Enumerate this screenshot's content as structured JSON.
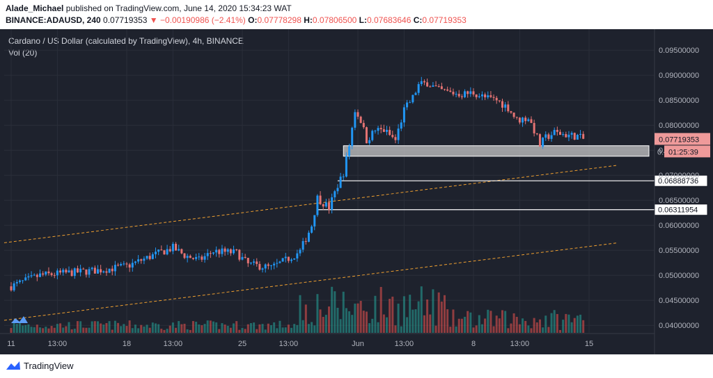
{
  "header": {
    "author": "Alade_Michael",
    "published_text": "published on TradingView.com, June 14, 2020 15:34:23 WAT",
    "symbol": "BINANCE:ADAUSD, 240",
    "last": "0.07719353",
    "change": "−0.00190986 (−2.41%)",
    "o_label": "O:",
    "o": "0.07778298",
    "h_label": "H:",
    "h": "0.07806500",
    "l_label": "L:",
    "l": "0.07683646",
    "c_label": "C:",
    "c": "0.07719353"
  },
  "legend": {
    "title": "Cardano / US Dollar (calculated by TradingView), 4h, BINANCE",
    "vol": "Vol (20)"
  },
  "footer": {
    "brand": "TradingView"
  },
  "colors": {
    "background": "#1e222d",
    "up": "#2196f3",
    "down": "#e57373",
    "vol_up": "#26a69a",
    "vol_down": "#ef5350",
    "trendline": "#f0a030",
    "zone": "#c8c8c8"
  },
  "chart_data": {
    "type": "candlestick",
    "title": "Cardano / US Dollar (calculated by TradingView), 4h, BINANCE",
    "y_ticks": [
      "0.09500000",
      "0.09000000",
      "0.08500000",
      "0.08000000",
      "0.07500000",
      "0.07000000",
      "0.06500000",
      "0.06000000",
      "0.05500000",
      "0.05000000",
      "0.04500000",
      "0.04000000"
    ],
    "y_tick_values": [
      0.095,
      0.09,
      0.085,
      0.08,
      0.075,
      0.07,
      0.065,
      0.06,
      0.055,
      0.05,
      0.045,
      0.04
    ],
    "ylim": [
      0.0385,
      0.0985
    ],
    "x_ticks": [
      "11",
      "13:00",
      "18",
      "13:00",
      "25",
      "13:00",
      "Jun",
      "13:00",
      "8",
      "13:00",
      "15"
    ],
    "x_tick_bars": [
      0,
      16,
      40,
      56,
      80,
      96,
      120,
      136,
      160,
      176,
      200
    ],
    "last_price_label": "0.07719353",
    "countdown_label": "01:25:39",
    "countdown_prefix": "0.",
    "levels": [
      {
        "label": "0.06888736",
        "value": 0.06889,
        "start_bar": 113
      },
      {
        "label": "0.06311954",
        "value": 0.06312,
        "start_bar": 106
      }
    ],
    "zone": {
      "low": 0.0738,
      "high": 0.0759,
      "start_bar": 115
    },
    "trendlines": [
      {
        "x1_bar": 0,
        "y1": 0.0565,
        "x2_bar": 210,
        "y2": 0.072
      },
      {
        "x1_bar": 0,
        "y1": 0.041,
        "x2_bar": 210,
        "y2": 0.0565
      }
    ],
    "price_anchors": [
      [
        0,
        0.0478
      ],
      [
        10,
        0.05
      ],
      [
        20,
        0.0505
      ],
      [
        30,
        0.051
      ],
      [
        40,
        0.0518
      ],
      [
        50,
        0.0542
      ],
      [
        56,
        0.0555
      ],
      [
        60,
        0.054
      ],
      [
        65,
        0.053
      ],
      [
        70,
        0.0548
      ],
      [
        78,
        0.0545
      ],
      [
        82,
        0.0522
      ],
      [
        90,
        0.0515
      ],
      [
        95,
        0.053
      ],
      [
        100,
        0.0548
      ],
      [
        104,
        0.06
      ],
      [
        106,
        0.0655
      ],
      [
        110,
        0.0635
      ],
      [
        113,
        0.068
      ],
      [
        115,
        0.0705
      ],
      [
        117,
        0.076
      ],
      [
        119,
        0.083
      ],
      [
        121,
        0.081
      ],
      [
        123,
        0.077
      ],
      [
        126,
        0.079
      ],
      [
        129,
        0.079
      ],
      [
        133,
        0.077
      ],
      [
        136,
        0.083
      ],
      [
        139,
        0.0855
      ],
      [
        141,
        0.088
      ],
      [
        144,
        0.0885
      ],
      [
        148,
        0.087
      ],
      [
        152,
        0.0865
      ],
      [
        156,
        0.0862
      ],
      [
        160,
        0.0865
      ],
      [
        164,
        0.0855
      ],
      [
        168,
        0.085
      ],
      [
        172,
        0.0835
      ],
      [
        175,
        0.081
      ],
      [
        179,
        0.0815
      ],
      [
        181,
        0.079
      ],
      [
        183,
        0.076
      ],
      [
        185,
        0.0775
      ],
      [
        188,
        0.0785
      ],
      [
        193,
        0.078
      ],
      [
        196,
        0.0778
      ],
      [
        198,
        0.0772
      ]
    ],
    "volume_range": [
      0,
      100
    ]
  }
}
